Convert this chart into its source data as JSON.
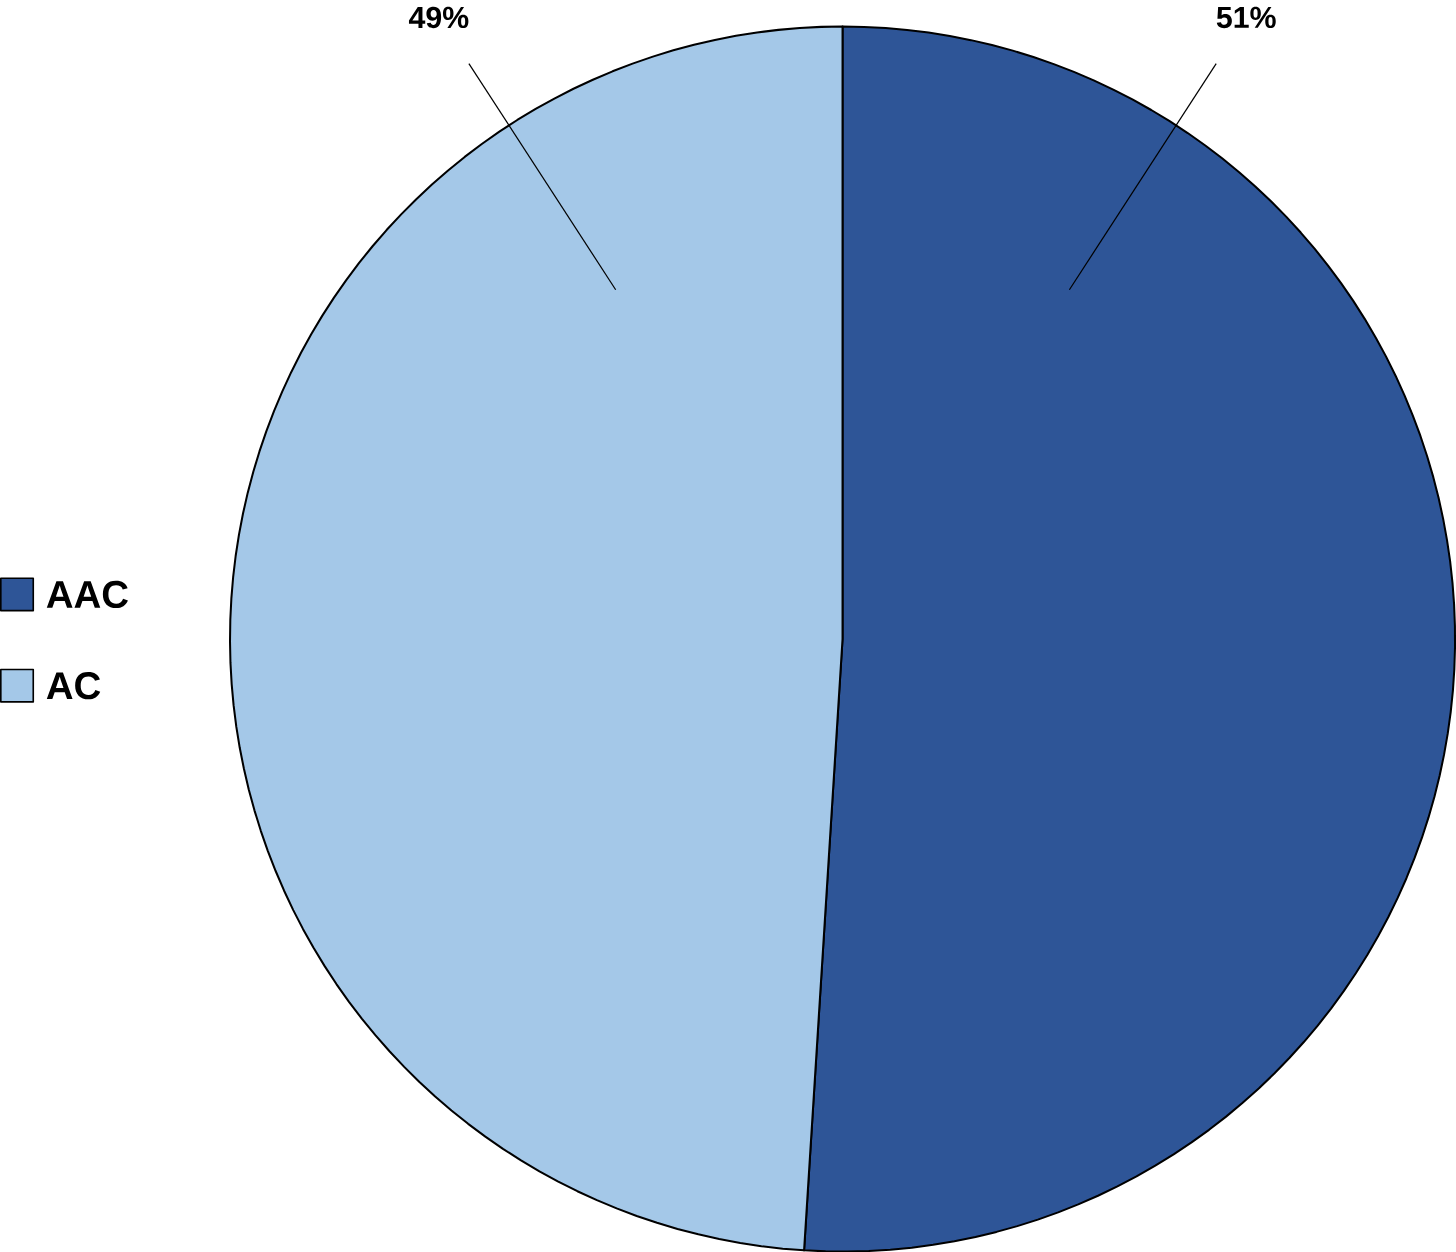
{
  "chart_data": {
    "type": "pie",
    "categories": [
      "AAC",
      "AC"
    ],
    "values": [
      51,
      49
    ],
    "colors": [
      "#2e5597",
      "#a4c8e8"
    ],
    "value_labels": [
      "51%",
      "49%"
    ],
    "legend": "left"
  }
}
